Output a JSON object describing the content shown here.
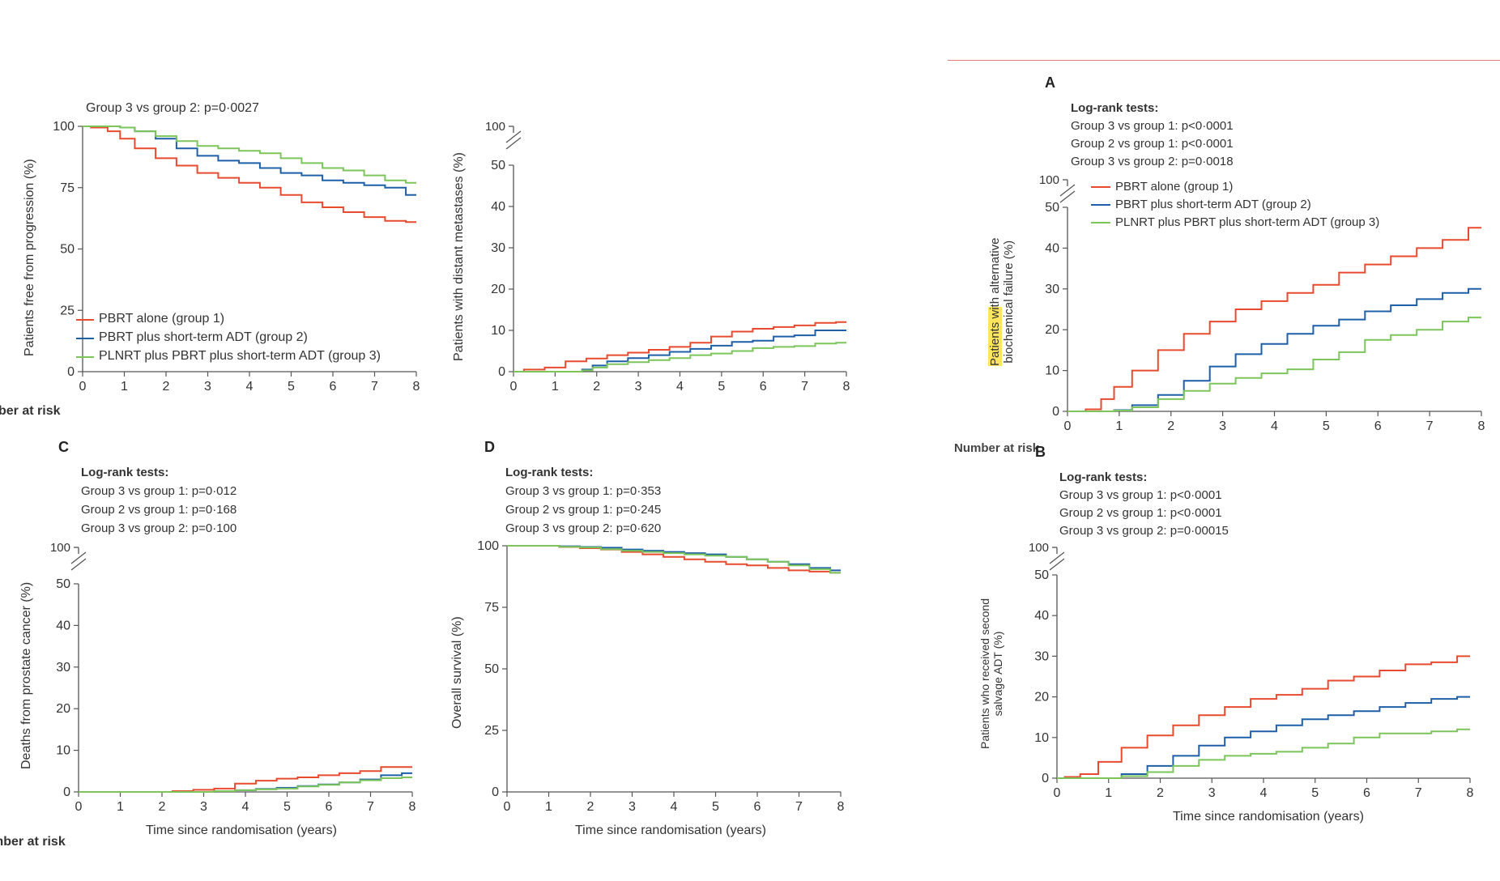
{
  "colors": {
    "group1": "#e84a2f",
    "group2": "#1f5fa8",
    "group3": "#7cc55a",
    "axis": "#555555",
    "rule": "#e07d7d",
    "highlight": "#ffe55c"
  },
  "fragments": {
    "number_at_risk_top": "ber at risk",
    "number_at_risk_bottom": "mber at risk",
    "number_at_risk_A": "Number at risk"
  },
  "panels": {
    "top_left": {
      "pvalue": "Group 3 vs group 2: p=0·0027",
      "ylabel": "Patients free from progression (%)",
      "legend": [
        "PBRT alone (group 1)",
        "PBRT plus short-term ADT (group 2)",
        "PLNRT plus PBRT plus short-term ADT (group 3)"
      ]
    },
    "top_middle": {
      "ylabel": "Patients with distant metastases (%)"
    },
    "A": {
      "letter": "A",
      "tests_title": "Log-rank tests:",
      "tests": [
        "Group 3 vs group 1: p<0·0001",
        "Group 2 vs group 1: p<0·0001",
        "Group 3 vs group 2: p=0·0018"
      ],
      "ylabel_highlight": "Patients wi",
      "ylabel_line1_rest": "th alternative",
      "ylabel_line2": "biochemical failure (%)",
      "legend": [
        "PBRT alone (group 1)",
        "PBRT plus short-term ADT (group 2)",
        "PLNRT plus PBRT plus short-term ADT (group 3)"
      ]
    },
    "B": {
      "letter": "B",
      "tests_title": "Log-rank tests:",
      "tests": [
        "Group 3 vs group 1: p<0·0001",
        "Group 2 vs group 1: p<0·0001",
        "Group 3 vs group 2: p=0·00015"
      ],
      "ylabel_line1": "Patients who received second",
      "ylabel_line2": "salvage ADT (%)",
      "xlabel": "Time since randomisation (years)"
    },
    "C": {
      "letter": "C",
      "tests_title": "Log-rank tests:",
      "tests": [
        "Group 3 vs group 1: p=0·012",
        "Group 2 vs group 1: p=0·168",
        "Group 3 vs group 2: p=0·100"
      ],
      "ylabel": "Deaths from prostate cancer (%)",
      "xlabel": "Time since randomisation (years)"
    },
    "D": {
      "letter": "D",
      "tests_title": "Log-rank tests:",
      "tests": [
        "Group 3 vs group 1: p=0·353",
        "Group 2 vs group 1: p=0·245",
        "Group 3 vs group 2: p=0·620"
      ],
      "ylabel": "Overall survival (%)",
      "xlabel": "Time since randomisation (years)"
    }
  },
  "chart_data": [
    {
      "id": "top_left",
      "type": "line",
      "xlabel": "",
      "ylabel": "Patients free from progression (%)",
      "xlim": [
        0,
        8
      ],
      "ylim": [
        0,
        100
      ],
      "x_ticks": [
        "0",
        "1",
        "2",
        "3",
        "4",
        "5",
        "6",
        "7",
        "8"
      ],
      "y_ticks": [
        "0",
        "25",
        "50",
        "75",
        "100"
      ],
      "series": [
        {
          "name": "PBRT alone (group 1)",
          "x": [
            0,
            0.4,
            0.8,
            1,
            1.5,
            2,
            2.5,
            3,
            3.5,
            4,
            4.5,
            5,
            5.5,
            6,
            6.5,
            7,
            7.5,
            8
          ],
          "y": [
            100,
            99.5,
            98,
            95,
            91,
            87,
            84,
            81,
            79,
            77,
            75,
            72,
            69,
            67,
            65,
            63,
            61.5,
            61
          ]
        },
        {
          "name": "PBRT plus short-term ADT (group 2)",
          "x": [
            0,
            0.8,
            1,
            1.5,
            2,
            2.5,
            3,
            3.5,
            4,
            4.5,
            5,
            5.5,
            6,
            6.5,
            7,
            7.5,
            8
          ],
          "y": [
            100,
            100,
            99.5,
            98,
            95,
            91,
            88,
            86,
            85,
            83,
            81,
            80,
            78,
            77,
            76,
            75,
            72
          ]
        },
        {
          "name": "PLNRT plus PBRT plus short-term ADT (group 3)",
          "x": [
            0,
            0.8,
            1,
            1.5,
            2,
            2.5,
            3,
            3.5,
            4,
            4.5,
            5,
            5.5,
            6,
            6.5,
            7,
            7.5,
            8
          ],
          "y": [
            100,
            100,
            99.5,
            98,
            96,
            94,
            92,
            91,
            90,
            89,
            87,
            85,
            83,
            82,
            80,
            78,
            77
          ]
        }
      ]
    },
    {
      "id": "top_middle",
      "type": "line",
      "ylabel": "Patients with distant metastases (%)",
      "xlim": [
        0,
        8
      ],
      "ylim": [
        0,
        50
      ],
      "axis_break_top": "100",
      "x_ticks": [
        "0",
        "1",
        "2",
        "3",
        "4",
        "5",
        "6",
        "7",
        "8"
      ],
      "y_ticks": [
        "0",
        "10",
        "20",
        "30",
        "40",
        "50"
      ],
      "series": [
        {
          "name": "PBRT alone (group 1)",
          "x": [
            0,
            0.5,
            1,
            1.5,
            2,
            2.5,
            3,
            3.5,
            4,
            4.5,
            5,
            5.5,
            6,
            6.5,
            7,
            7.5,
            8
          ],
          "y": [
            0,
            0.5,
            1,
            2.5,
            3.2,
            4,
            4.6,
            5.3,
            6,
            7,
            8.5,
            9.7,
            10.4,
            10.8,
            11.2,
            11.8,
            12
          ]
        },
        {
          "name": "PBRT plus short-term ADT (group 2)",
          "x": [
            0,
            1.5,
            1.8,
            2,
            2.5,
            3,
            3.5,
            4,
            4.5,
            5,
            5.5,
            6,
            6.5,
            7,
            7.5,
            8
          ],
          "y": [
            0,
            0,
            0.5,
            1.5,
            2.5,
            3.3,
            4,
            4.8,
            5.5,
            6.3,
            7.2,
            7.5,
            8.5,
            8.8,
            10,
            10
          ]
        },
        {
          "name": "PLNRT plus PBRT plus short-term ADT (group 3)",
          "x": [
            0,
            1.5,
            1.8,
            2,
            2.5,
            3,
            3.5,
            4,
            4.5,
            5,
            5.5,
            6,
            6.5,
            7,
            7.5,
            8
          ],
          "y": [
            0,
            0,
            0.3,
            1,
            1.8,
            2.3,
            2.8,
            3.3,
            4,
            4.4,
            5,
            5.7,
            6,
            6.2,
            6.8,
            7
          ]
        }
      ]
    },
    {
      "id": "A",
      "type": "line",
      "ylabel": "Patients with alternative biochemical failure (%)",
      "xlim": [
        0,
        8
      ],
      "ylim": [
        0,
        50
      ],
      "axis_break_top": "100",
      "x_ticks": [
        "0",
        "1",
        "2",
        "3",
        "4",
        "5",
        "6",
        "7",
        "8"
      ],
      "y_ticks": [
        "0",
        "10",
        "20",
        "30",
        "40",
        "50"
      ],
      "series": [
        {
          "name": "PBRT alone (group 1)",
          "x": [
            0,
            0.2,
            0.5,
            0.8,
            1,
            1.5,
            2,
            2.5,
            3,
            3.5,
            4,
            4.5,
            5,
            5.5,
            6,
            6.5,
            7,
            7.5,
            8
          ],
          "y": [
            0,
            0,
            0.5,
            3,
            6,
            10,
            15,
            19,
            22,
            25,
            27,
            29,
            31,
            34,
            36,
            38,
            40,
            42,
            45
          ]
        },
        {
          "name": "PBRT plus short-term ADT (group 2)",
          "x": [
            0,
            0.8,
            1,
            1.5,
            2,
            2.5,
            3,
            3.5,
            4,
            4.5,
            5,
            5.5,
            6,
            6.5,
            7,
            7.5,
            8
          ],
          "y": [
            0,
            0,
            0.3,
            1.5,
            4,
            7.5,
            11,
            14,
            16.5,
            19,
            21,
            22.5,
            24.5,
            26,
            27.5,
            29,
            30
          ]
        },
        {
          "name": "PLNRT plus PBRT plus short-term ADT (group 3)",
          "x": [
            0,
            0.8,
            1,
            1.5,
            2,
            2.5,
            3,
            3.5,
            4,
            4.5,
            5,
            5.5,
            6,
            6.5,
            7,
            7.5,
            8
          ],
          "y": [
            0,
            0,
            0.2,
            1,
            3,
            5,
            6.8,
            8.2,
            9.3,
            10.3,
            12.7,
            14.5,
            17.5,
            18.7,
            20,
            22,
            23
          ]
        }
      ]
    },
    {
      "id": "B",
      "type": "line",
      "ylabel": "Patients who received second salvage ADT (%)",
      "xlabel": "Time since randomisation (years)",
      "xlim": [
        0,
        8
      ],
      "ylim": [
        0,
        50
      ],
      "axis_break_top": "100",
      "x_ticks": [
        "0",
        "1",
        "2",
        "3",
        "4",
        "5",
        "6",
        "7",
        "8"
      ],
      "y_ticks": [
        "0",
        "10",
        "20",
        "30",
        "40",
        "50"
      ],
      "series": [
        {
          "name": "PBRT alone (group 1)",
          "x": [
            0,
            0.3,
            0.6,
            1,
            1.5,
            2,
            2.5,
            3,
            3.5,
            4,
            4.5,
            5,
            5.5,
            6,
            6.5,
            7,
            7.5,
            8
          ],
          "y": [
            0,
            0.3,
            1,
            4,
            7.5,
            10.5,
            13,
            15.5,
            17.5,
            19.5,
            20.5,
            22,
            24,
            25,
            26.5,
            28,
            28.5,
            30
          ]
        },
        {
          "name": "PBRT plus short-term ADT (group 2)",
          "x": [
            0,
            1,
            1.5,
            2,
            2.5,
            3,
            3.5,
            4,
            4.5,
            5,
            5.5,
            6,
            6.5,
            7,
            7.5,
            8
          ],
          "y": [
            0,
            0,
            1,
            3,
            5.5,
            8,
            10,
            11.5,
            13,
            14.5,
            15.5,
            16.5,
            17.5,
            18.5,
            19.5,
            20
          ]
        },
        {
          "name": "PLNRT plus PBRT plus short-term ADT (group 3)",
          "x": [
            0,
            1,
            1.5,
            2,
            2.5,
            3,
            3.5,
            4,
            4.5,
            5,
            5.5,
            6,
            6.5,
            7,
            7.5,
            8
          ],
          "y": [
            0,
            0,
            0.5,
            1.5,
            3,
            4.5,
            5.5,
            6,
            6.5,
            7.5,
            8.5,
            10,
            11,
            11,
            11.5,
            12
          ]
        }
      ]
    },
    {
      "id": "C",
      "type": "line",
      "ylabel": "Deaths from prostate cancer (%)",
      "xlabel": "Time since randomisation (years)",
      "xlim": [
        0,
        8
      ],
      "ylim": [
        0,
        50
      ],
      "axis_break_top": "100",
      "x_ticks": [
        "0",
        "1",
        "2",
        "3",
        "4",
        "5",
        "6",
        "7",
        "8"
      ],
      "y_ticks": [
        "0",
        "10",
        "20",
        "30",
        "40",
        "50"
      ],
      "series": [
        {
          "name": "PBRT alone (group 1)",
          "x": [
            0,
            2,
            2.5,
            3,
            3.5,
            4,
            4.5,
            5,
            5.5,
            6,
            6.5,
            7,
            7.5,
            8
          ],
          "y": [
            0,
            0,
            0.2,
            0.5,
            0.8,
            2,
            2.7,
            3.2,
            3.5,
            4,
            4.5,
            5,
            6,
            6
          ]
        },
        {
          "name": "PBRT plus short-term ADT (group 2)",
          "x": [
            0,
            3,
            3.5,
            4,
            4.5,
            5,
            5.5,
            6,
            6.5,
            7,
            7.5,
            8
          ],
          "y": [
            0,
            0,
            0.2,
            0.4,
            0.7,
            1,
            1.4,
            1.8,
            2.3,
            3,
            4,
            4.5
          ]
        },
        {
          "name": "PLNRT plus PBRT plus short-term ADT (group 3)",
          "x": [
            0,
            3,
            3.5,
            4,
            4.5,
            5,
            5.5,
            6,
            6.5,
            7,
            7.5,
            8
          ],
          "y": [
            0,
            0,
            0.2,
            0.4,
            0.6,
            0.8,
            1.3,
            1.7,
            2.3,
            2.8,
            3.3,
            3.5
          ]
        }
      ]
    },
    {
      "id": "D",
      "type": "line",
      "ylabel": "Overall survival (%)",
      "xlabel": "Time since randomisation (years)",
      "xlim": [
        0,
        8
      ],
      "ylim": [
        0,
        100
      ],
      "x_ticks": [
        "0",
        "1",
        "2",
        "3",
        "4",
        "5",
        "6",
        "7",
        "8"
      ],
      "y_ticks": [
        "0",
        "25",
        "50",
        "75",
        "100"
      ],
      "series": [
        {
          "name": "PBRT alone (group 1)",
          "x": [
            0,
            1,
            1.5,
            2,
            2.5,
            3,
            3.5,
            4,
            4.5,
            5,
            5.5,
            6,
            6.5,
            7,
            7.5,
            8
          ],
          "y": [
            100,
            100,
            99.5,
            99,
            98.5,
            97.5,
            96.5,
            95.5,
            94.5,
            93.5,
            92.5,
            92,
            91,
            90,
            89.5,
            89
          ]
        },
        {
          "name": "PBRT plus short-term ADT (group 2)",
          "x": [
            0,
            1,
            1.5,
            2,
            2.5,
            3,
            3.5,
            4,
            4.5,
            5,
            5.5,
            6,
            6.5,
            7,
            7.5,
            8
          ],
          "y": [
            100,
            100,
            99.8,
            99.5,
            99.2,
            98.5,
            98,
            97.5,
            97,
            96.5,
            95.5,
            94.5,
            93.5,
            92.5,
            91,
            90
          ]
        },
        {
          "name": "PLNRT plus PBRT plus short-term ADT (group 3)",
          "x": [
            0,
            1,
            1.5,
            2,
            2.5,
            3,
            3.5,
            4,
            4.5,
            5,
            5.5,
            6,
            6.5,
            7,
            7.5,
            8
          ],
          "y": [
            100,
            100,
            99.6,
            99.3,
            98.6,
            98,
            97.5,
            97,
            96.5,
            96,
            95.5,
            94.5,
            93.5,
            92,
            90.5,
            89
          ]
        }
      ]
    }
  ]
}
